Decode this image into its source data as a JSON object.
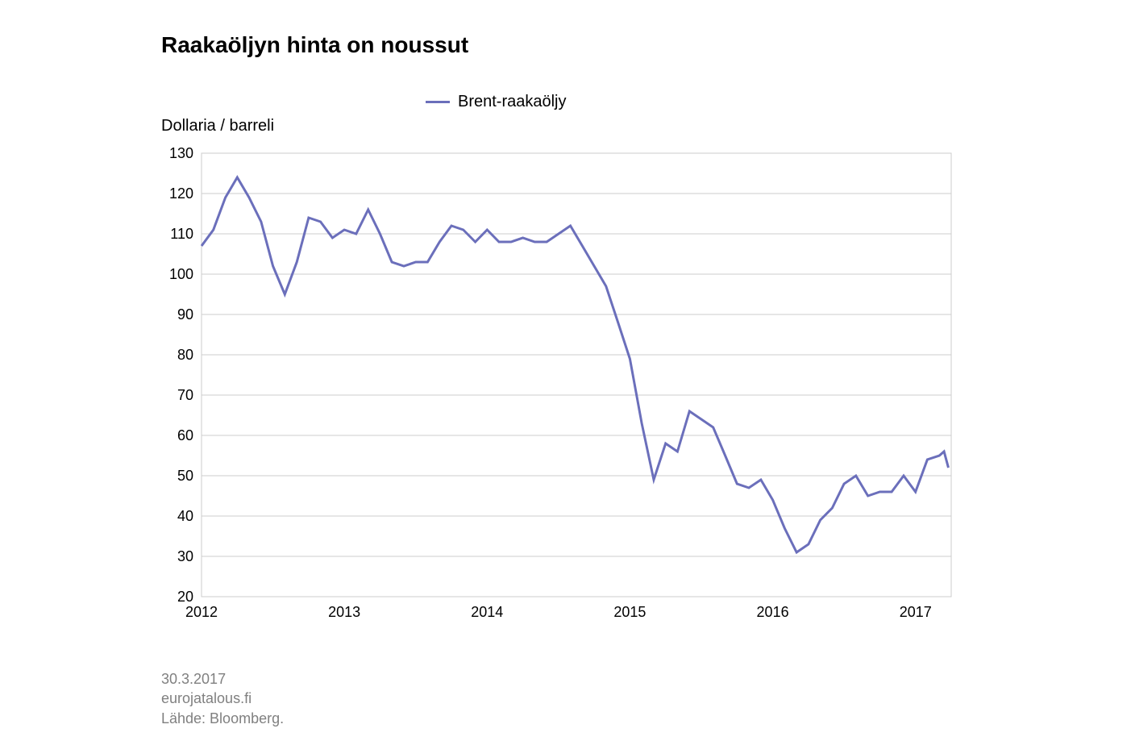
{
  "chart": {
    "type": "line",
    "title": "Raakaöljyn hinta on noussut",
    "ylabel": "Dollaria / barreli",
    "legend": "Brent-raakaöljy",
    "footer_date": "30.3.2017",
    "footer_site": "eurojatalous.fi",
    "footer_source": "Lähde: Bloomberg.",
    "background_color": "#ffffff",
    "grid_color": "#cccccc",
    "axis_color": "#000000",
    "line_color": "#6b6fbb",
    "line_width": 3,
    "title_fontsize": 28,
    "label_fontsize": 20,
    "tick_fontsize": 18,
    "footer_fontsize": 18,
    "footer_color": "#808080",
    "ylim": [
      20,
      130
    ],
    "ytick_step": 10,
    "yticks": [
      20,
      30,
      40,
      50,
      60,
      70,
      80,
      90,
      100,
      110,
      120,
      130
    ],
    "xlim": [
      2012,
      2017.25
    ],
    "xticks": [
      2012,
      2013,
      2014,
      2015,
      2016,
      2017
    ],
    "xtick_labels": [
      "2012",
      "2013",
      "2014",
      "2015",
      "2016",
      "2017"
    ],
    "series": [
      {
        "name": "Brent-raakaöljy",
        "color": "#6b6fbb",
        "data": [
          [
            2012.0,
            107
          ],
          [
            2012.083,
            111
          ],
          [
            2012.167,
            119
          ],
          [
            2012.25,
            124
          ],
          [
            2012.333,
            119
          ],
          [
            2012.417,
            113
          ],
          [
            2012.5,
            102
          ],
          [
            2012.583,
            95
          ],
          [
            2012.667,
            103
          ],
          [
            2012.75,
            114
          ],
          [
            2012.833,
            113
          ],
          [
            2012.917,
            109
          ],
          [
            2013.0,
            111
          ],
          [
            2013.083,
            110
          ],
          [
            2013.167,
            116
          ],
          [
            2013.25,
            110
          ],
          [
            2013.333,
            103
          ],
          [
            2013.417,
            102
          ],
          [
            2013.5,
            103
          ],
          [
            2013.583,
            103
          ],
          [
            2013.667,
            108
          ],
          [
            2013.75,
            112
          ],
          [
            2013.833,
            111
          ],
          [
            2013.917,
            108
          ],
          [
            2014.0,
            111
          ],
          [
            2014.083,
            108
          ],
          [
            2014.167,
            108
          ],
          [
            2014.25,
            109
          ],
          [
            2014.333,
            108
          ],
          [
            2014.417,
            108
          ],
          [
            2014.5,
            110
          ],
          [
            2014.583,
            112
          ],
          [
            2014.667,
            107
          ],
          [
            2014.75,
            102
          ],
          [
            2014.833,
            97
          ],
          [
            2014.917,
            88
          ],
          [
            2015.0,
            79
          ],
          [
            2015.083,
            63
          ],
          [
            2015.167,
            49
          ],
          [
            2015.25,
            58
          ],
          [
            2015.333,
            56
          ],
          [
            2015.417,
            66
          ],
          [
            2015.5,
            64
          ],
          [
            2015.583,
            62
          ],
          [
            2015.667,
            55
          ],
          [
            2015.75,
            48
          ],
          [
            2015.833,
            47
          ],
          [
            2015.917,
            49
          ],
          [
            2016.0,
            44
          ],
          [
            2016.083,
            37
          ],
          [
            2016.167,
            31
          ],
          [
            2016.25,
            33
          ],
          [
            2016.333,
            39
          ],
          [
            2016.417,
            42
          ],
          [
            2016.5,
            48
          ],
          [
            2016.583,
            50
          ],
          [
            2016.667,
            45
          ],
          [
            2016.75,
            46
          ],
          [
            2016.833,
            46
          ],
          [
            2016.917,
            50
          ],
          [
            2017.0,
            46
          ],
          [
            2017.083,
            54
          ],
          [
            2017.167,
            55
          ],
          [
            2017.2,
            56
          ],
          [
            2017.23,
            52
          ]
        ]
      }
    ]
  }
}
